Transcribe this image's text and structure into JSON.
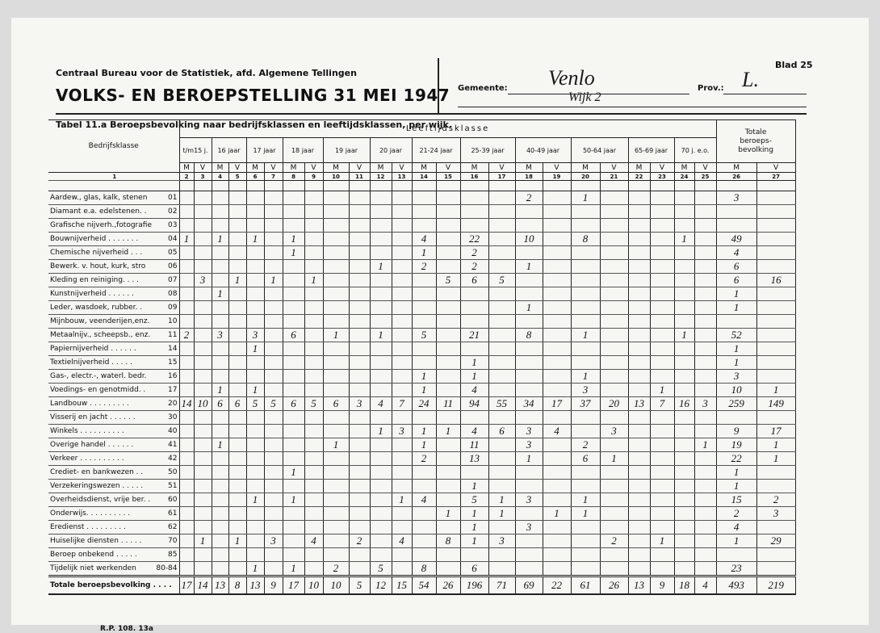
{
  "header": {
    "institute": "Centraal Bureau voor de Statistiek, afd. Algemene Tellingen",
    "title": "VOLKS- EN BEROEPSTELLING 31 MEI 1947",
    "sheet": "Blad 25",
    "municipality_label": "Gemeente:",
    "municipality": "Venlo",
    "province_label": "Prov.:",
    "province": "L.",
    "district": "Wijk 2"
  },
  "table": {
    "caption": "Tabel 11.a Beroepsbevolking naar bedrijfsklassen en leeftijdsklassen, per wijk.",
    "row_header": "Bedrijfsklasse",
    "group_header": "Leeftijdsklasse",
    "age_groups": [
      "t/m15 j.",
      "16 jaar",
      "17 jaar",
      "18 jaar",
      "19 jaar",
      "20 jaar",
      "21-24 jaar",
      "25-39 jaar",
      "40-49 jaar",
      "50-64 jaar",
      "65-69 jaar",
      "70 j. e.o."
    ],
    "total_header": "Totale\nberoeps-\nbevolking",
    "sexes": [
      "M",
      "V"
    ],
    "column_numbers": [
      1,
      2,
      3,
      4,
      5,
      6,
      7,
      8,
      9,
      10,
      11,
      12,
      13,
      14,
      15,
      16,
      17,
      18,
      19,
      20,
      21,
      22,
      23,
      24,
      25,
      26,
      27
    ],
    "rows": [
      {
        "label": "Aardew., glas, kalk, stenen",
        "code": "01",
        "cells": [
          null,
          null,
          null,
          null,
          null,
          null,
          null,
          null,
          null,
          null,
          null,
          null,
          null,
          null,
          null,
          null,
          2,
          null,
          1,
          null,
          null,
          null,
          null,
          null,
          3,
          null
        ]
      },
      {
        "label": "Diamant e.a. edelstenen. .",
        "code": "02",
        "cells": [
          null,
          null,
          null,
          null,
          null,
          null,
          null,
          null,
          null,
          null,
          null,
          null,
          null,
          null,
          null,
          null,
          null,
          null,
          null,
          null,
          null,
          null,
          null,
          null,
          null,
          null
        ]
      },
      {
        "label": "Grafische nijverh.,fotografie",
        "code": "03",
        "cells": [
          null,
          null,
          null,
          null,
          null,
          null,
          null,
          null,
          null,
          null,
          null,
          null,
          null,
          null,
          null,
          null,
          null,
          null,
          null,
          null,
          null,
          null,
          null,
          null,
          null,
          null
        ]
      },
      {
        "label": "Bouwnijverheid . . . . . . .",
        "code": "04",
        "cells": [
          1,
          null,
          1,
          null,
          1,
          null,
          1,
          null,
          null,
          null,
          null,
          null,
          4,
          null,
          22,
          null,
          10,
          null,
          8,
          null,
          null,
          null,
          1,
          null,
          49,
          null
        ]
      },
      {
        "label": "Chemische nijverheid . . .",
        "code": "05",
        "cells": [
          null,
          null,
          null,
          null,
          null,
          null,
          1,
          null,
          null,
          null,
          null,
          null,
          1,
          null,
          2,
          null,
          null,
          null,
          null,
          null,
          null,
          null,
          null,
          null,
          4,
          null
        ]
      },
      {
        "label": "Bewerk. v. hout, kurk, stro",
        "code": "06",
        "cells": [
          null,
          null,
          null,
          null,
          null,
          null,
          null,
          null,
          null,
          null,
          1,
          null,
          2,
          null,
          2,
          null,
          1,
          null,
          null,
          null,
          null,
          null,
          null,
          null,
          6,
          null
        ]
      },
      {
        "label": "Kleding en reiniging. . . .",
        "code": "07",
        "cells": [
          null,
          3,
          null,
          1,
          null,
          1,
          null,
          1,
          null,
          null,
          null,
          null,
          null,
          5,
          6,
          5,
          null,
          null,
          null,
          null,
          null,
          null,
          null,
          null,
          6,
          16
        ]
      },
      {
        "label": "Kunstnijverheid . . . . . .",
        "code": "08",
        "cells": [
          null,
          null,
          1,
          null,
          null,
          null,
          null,
          null,
          null,
          null,
          null,
          null,
          null,
          null,
          null,
          null,
          null,
          null,
          null,
          null,
          null,
          null,
          null,
          null,
          1,
          null
        ]
      },
      {
        "label": "Leder, wasdoek, rubber. .",
        "code": "09",
        "cells": [
          null,
          null,
          null,
          null,
          null,
          null,
          null,
          null,
          null,
          null,
          null,
          null,
          null,
          null,
          null,
          null,
          1,
          null,
          null,
          null,
          null,
          null,
          null,
          null,
          1,
          null
        ]
      },
      {
        "label": "Mijnbouw, veenderijen,enz.",
        "code": "10",
        "cells": [
          null,
          null,
          null,
          null,
          null,
          null,
          null,
          null,
          null,
          null,
          null,
          null,
          null,
          null,
          null,
          null,
          null,
          null,
          null,
          null,
          null,
          null,
          null,
          null,
          null,
          null
        ]
      },
      {
        "label": "Metaalnijv., scheepsb., enz.",
        "code": "11",
        "cells": [
          2,
          null,
          3,
          null,
          3,
          null,
          6,
          null,
          1,
          null,
          1,
          null,
          5,
          null,
          21,
          null,
          8,
          null,
          1,
          null,
          null,
          null,
          1,
          null,
          52,
          null
        ]
      },
      {
        "label": "Papiernijverheid . . . . . .",
        "code": "14",
        "cells": [
          null,
          null,
          null,
          null,
          1,
          null,
          null,
          null,
          null,
          null,
          null,
          null,
          null,
          null,
          null,
          null,
          null,
          null,
          null,
          null,
          null,
          null,
          null,
          null,
          1,
          null
        ]
      },
      {
        "label": "Textielnijverheid . . . . .",
        "code": "15",
        "cells": [
          null,
          null,
          null,
          null,
          null,
          null,
          null,
          null,
          null,
          null,
          null,
          null,
          null,
          null,
          1,
          null,
          null,
          null,
          null,
          null,
          null,
          null,
          null,
          null,
          1,
          null
        ]
      },
      {
        "label": "Gas-, electr.-, waterl. bedr.",
        "code": "16",
        "cells": [
          null,
          null,
          null,
          null,
          null,
          null,
          null,
          null,
          null,
          null,
          null,
          null,
          1,
          null,
          1,
          null,
          null,
          null,
          1,
          null,
          null,
          null,
          null,
          null,
          3,
          null
        ]
      },
      {
        "label": "Voedings- en genotmidd. .",
        "code": "17",
        "cells": [
          null,
          null,
          1,
          null,
          1,
          null,
          null,
          null,
          null,
          null,
          null,
          null,
          1,
          null,
          4,
          null,
          null,
          null,
          3,
          null,
          null,
          1,
          null,
          null,
          10,
          1
        ]
      },
      {
        "label": "Landbouw . . . . . . . . .",
        "code": "20",
        "cells": [
          14,
          10,
          6,
          6,
          5,
          5,
          6,
          5,
          6,
          3,
          4,
          7,
          24,
          11,
          94,
          55,
          34,
          17,
          37,
          20,
          13,
          7,
          16,
          3,
          259,
          149
        ]
      },
      {
        "label": "Visserij en jacht . . . . . .",
        "code": "30",
        "cells": [
          null,
          null,
          null,
          null,
          null,
          null,
          null,
          null,
          null,
          null,
          null,
          null,
          null,
          null,
          null,
          null,
          null,
          null,
          null,
          null,
          null,
          null,
          null,
          null,
          null,
          null
        ]
      },
      {
        "label": "Winkels . . . . . . . . . .",
        "code": "40",
        "cells": [
          null,
          null,
          null,
          null,
          null,
          null,
          null,
          null,
          null,
          null,
          1,
          3,
          1,
          1,
          4,
          6,
          3,
          4,
          null,
          3,
          null,
          null,
          null,
          null,
          9,
          17
        ]
      },
      {
        "label": "Overige handel . . . . . .",
        "code": "41",
        "cells": [
          null,
          null,
          1,
          null,
          null,
          null,
          null,
          null,
          1,
          null,
          null,
          null,
          1,
          null,
          11,
          null,
          3,
          null,
          2,
          null,
          null,
          null,
          null,
          1,
          19,
          1
        ]
      },
      {
        "label": "Verkeer . . . . . . . . . .",
        "code": "42",
        "cells": [
          null,
          null,
          null,
          null,
          null,
          null,
          null,
          null,
          null,
          null,
          null,
          null,
          2,
          null,
          13,
          null,
          1,
          null,
          6,
          1,
          null,
          null,
          null,
          null,
          22,
          1
        ]
      },
      {
        "label": "Crediet- en bankwezen . .",
        "code": "50",
        "cells": [
          null,
          null,
          null,
          null,
          null,
          null,
          1,
          null,
          null,
          null,
          null,
          null,
          null,
          null,
          null,
          null,
          null,
          null,
          null,
          null,
          null,
          null,
          null,
          null,
          1,
          null
        ]
      },
      {
        "label": "Verzekeringswezen . . . . .",
        "code": "51",
        "cells": [
          null,
          null,
          null,
          null,
          null,
          null,
          null,
          null,
          null,
          null,
          null,
          null,
          null,
          null,
          1,
          null,
          null,
          null,
          null,
          null,
          null,
          null,
          null,
          null,
          1,
          null
        ]
      },
      {
        "label": "Overheidsdienst, vrije ber. .",
        "code": "60",
        "cells": [
          null,
          null,
          null,
          null,
          1,
          null,
          1,
          null,
          null,
          null,
          null,
          1,
          4,
          null,
          5,
          1,
          3,
          null,
          1,
          null,
          null,
          null,
          null,
          null,
          15,
          2
        ]
      },
      {
        "label": "Onderwijs. . . . . . . . . .",
        "code": "61",
        "cells": [
          null,
          null,
          null,
          null,
          null,
          null,
          null,
          null,
          null,
          null,
          null,
          null,
          null,
          1,
          1,
          1,
          null,
          1,
          1,
          null,
          null,
          null,
          null,
          null,
          2,
          3
        ]
      },
      {
        "label": "Eredienst . . . . . . . . .",
        "code": "62",
        "cells": [
          null,
          null,
          null,
          null,
          null,
          null,
          null,
          null,
          null,
          null,
          null,
          null,
          null,
          null,
          1,
          null,
          3,
          null,
          null,
          null,
          null,
          null,
          null,
          null,
          4,
          null
        ]
      },
      {
        "label": "Huiselijke diensten . . . . .",
        "code": "70",
        "cells": [
          null,
          1,
          null,
          1,
          null,
          3,
          null,
          4,
          null,
          2,
          null,
          4,
          null,
          8,
          1,
          3,
          null,
          null,
          null,
          2,
          null,
          1,
          null,
          null,
          1,
          29
        ]
      },
      {
        "label": "Beroep onbekend . . . . .",
        "code": "85",
        "cells": [
          null,
          null,
          null,
          null,
          null,
          null,
          null,
          null,
          null,
          null,
          null,
          null,
          null,
          null,
          null,
          null,
          null,
          null,
          null,
          null,
          null,
          null,
          null,
          null,
          null,
          null
        ]
      },
      {
        "label": "Tijdelijk niet werkenden",
        "code": "80-84",
        "cells": [
          null,
          null,
          null,
          null,
          1,
          null,
          1,
          null,
          2,
          null,
          5,
          null,
          8,
          null,
          6,
          null,
          null,
          null,
          null,
          null,
          null,
          null,
          null,
          null,
          23,
          null
        ]
      }
    ],
    "total_row": {
      "label": "Totale beroepsbevolking . . . .",
      "cells": [
        17,
        14,
        13,
        8,
        13,
        9,
        17,
        10,
        10,
        5,
        12,
        15,
        54,
        26,
        196,
        71,
        69,
        22,
        61,
        26,
        13,
        9,
        18,
        4,
        493,
        219
      ]
    }
  },
  "footer": "R.P. 108. 13a"
}
